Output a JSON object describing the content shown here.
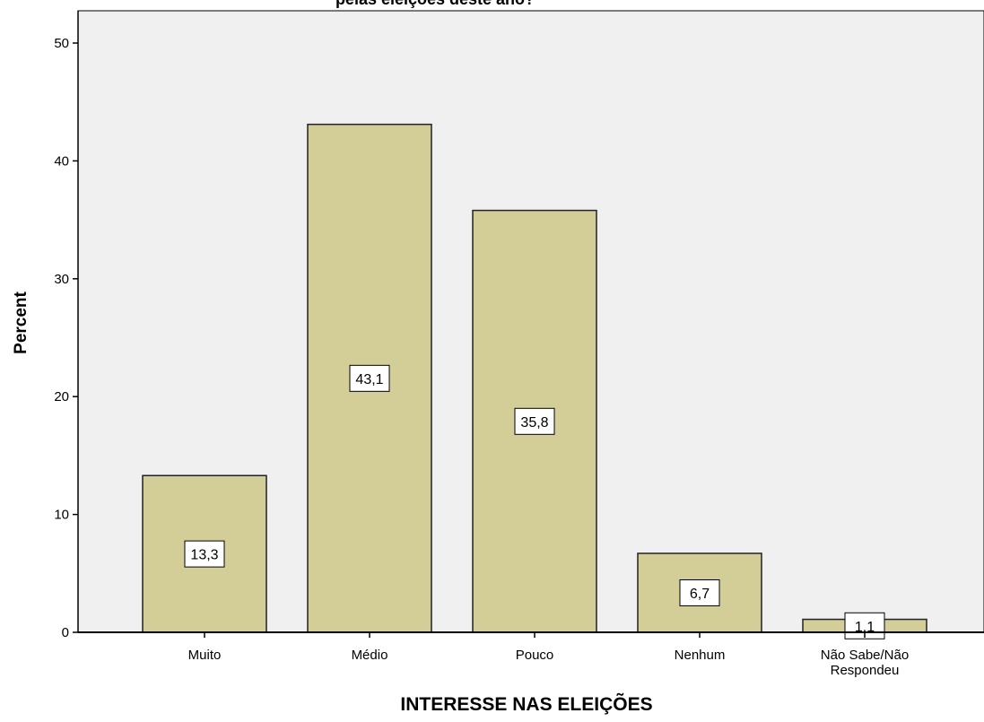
{
  "chart_data": {
    "type": "bar",
    "title": "pelas eleições deste ano?",
    "xlabel": "INTERESSE NAS ELEIÇÕES",
    "ylabel": "Percent",
    "categories": [
      [
        "Muito"
      ],
      [
        "Médio"
      ],
      [
        "Pouco"
      ],
      [
        "Nenhum"
      ],
      [
        "Não Sabe/Não",
        "Respondeu"
      ]
    ],
    "values": [
      13.3,
      43.1,
      35.8,
      6.7,
      1.1
    ],
    "data_labels": [
      "13,3",
      "43,1",
      "35,8",
      "6,7",
      "1,1"
    ],
    "ylim": [
      0,
      50
    ],
    "yticks": [
      0,
      10,
      20,
      30,
      40,
      50
    ],
    "grid": false,
    "colors": {
      "plot_background": "#f0f0f0",
      "bar_fill": "#d3ce97",
      "bar_stroke": "#222222",
      "label_box": "#ffffff"
    }
  }
}
